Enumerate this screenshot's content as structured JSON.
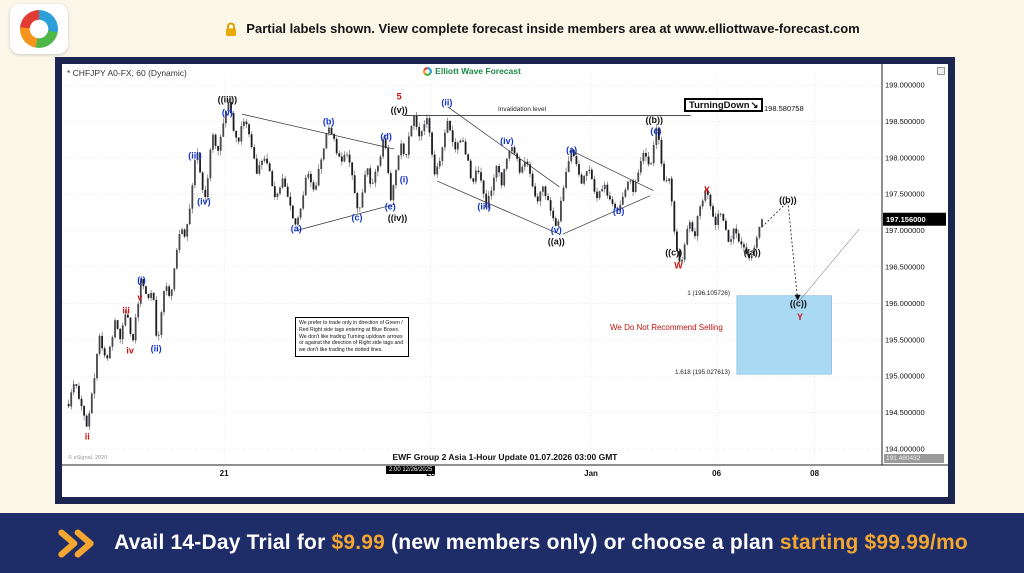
{
  "top_banner": {
    "text": "Partial labels shown. View complete forecast inside members area at www.elliottwave-forecast.com"
  },
  "bottom_banner": {
    "pre": "Avail 14-Day Trial for ",
    "price": "$9.99",
    "mid": " (new members only) or choose a plan ",
    "highlight": "starting $99.99/mo"
  },
  "chart_header": {
    "symbol": "* CHFJPY A0-FX, 60 (Dynamic)",
    "brand": "Elliott Wave Forecast"
  },
  "annotations": {
    "turning_down": "TurningDown",
    "turning_down_arrow": "↘",
    "invalidation_price": "198.580758",
    "invalidation_label": "Invalidation level",
    "no_sell": "We Do Not Recommend Selling",
    "disclaimer": "We prefer to trade only in direction of Green / Red Right side tags entering at Blue Boxes. We don't like trading Turning up/down arrows or against the direction of Right side tags and we don't like trading the dotted lines.",
    "fib_1": "1 (196.105726)",
    "fib_1618": "1.618 (195.027613)"
  },
  "footer": {
    "update": "EWF Group 2 Asia 1-Hour Update 01.07.2026 03:00 GMT",
    "copyright": "© eSignal, 2020",
    "time_badge": "2:00 12/26/2025",
    "axis_extra": "191.480432"
  },
  "colors": {
    "navy": "#1e2c68",
    "cream": "#faf6e8",
    "gold": "#f4a62e",
    "blue_box": "#a9d9f3",
    "label_blue": "#1133cc",
    "label_red": "#cc1111",
    "brand_green": "#1d8a44"
  },
  "chart_data": {
    "type": "candlestick",
    "symbol": "CHFJPY A0-FX",
    "timeframe_minutes": 60,
    "price_axis_range": [
      194.0,
      199.0
    ],
    "grid": true,
    "current_price": 197.156,
    "current_price_label": "197.156000",
    "invalidation_level": 198.580758,
    "invalidation_span": [
      0.415,
      0.77
    ],
    "price_ticks": [
      {
        "label": "199.000000",
        "value": 199.0
      },
      {
        "label": "198.500000",
        "value": 198.5
      },
      {
        "label": "198.000000",
        "value": 198.0
      },
      {
        "label": "197.500000",
        "value": 197.5
      },
      {
        "label": "197.000000",
        "value": 197.0
      },
      {
        "label": "196.500000",
        "value": 196.5
      },
      {
        "label": "196.000000",
        "value": 196.0
      },
      {
        "label": "195.500000",
        "value": 195.5
      },
      {
        "label": "195.000000",
        "value": 195.0
      },
      {
        "label": "194.500000",
        "value": 194.5
      },
      {
        "label": "194.000000",
        "value": 194.0
      }
    ],
    "time_ticks": [
      {
        "label": "21",
        "f": 0.194
      },
      {
        "label": "28",
        "f": 0.449
      },
      {
        "label": "Jan",
        "f": 0.647
      },
      {
        "label": "06",
        "f": 0.802
      },
      {
        "label": "08",
        "f": 0.923
      }
    ],
    "blue_box": {
      "f1": 0.827,
      "f2": 0.944,
      "p_top": 196.105726,
      "p_bottom": 195.027613,
      "color": "#a9d9f3"
    },
    "swings": [
      [
        0.002,
        194.62
      ],
      [
        0.01,
        194.95
      ],
      [
        0.018,
        194.55
      ],
      [
        0.025,
        194.28
      ],
      [
        0.04,
        195.55
      ],
      [
        0.048,
        195.18
      ],
      [
        0.06,
        195.75
      ],
      [
        0.066,
        195.45
      ],
      [
        0.073,
        195.97
      ],
      [
        0.08,
        195.4
      ],
      [
        0.092,
        196.36
      ],
      [
        0.1,
        196.05
      ],
      [
        0.106,
        196.22
      ],
      [
        0.111,
        195.42
      ],
      [
        0.122,
        196.3
      ],
      [
        0.128,
        196.05
      ],
      [
        0.14,
        197.1
      ],
      [
        0.146,
        196.85
      ],
      [
        0.16,
        198.1
      ],
      [
        0.17,
        197.4
      ],
      [
        0.18,
        198.35
      ],
      [
        0.186,
        198.05
      ],
      [
        0.198,
        198.78
      ],
      [
        0.21,
        198.2
      ],
      [
        0.22,
        198.55
      ],
      [
        0.235,
        197.8
      ],
      [
        0.243,
        198.05
      ],
      [
        0.258,
        197.45
      ],
      [
        0.266,
        197.7
      ],
      [
        0.283,
        197.05
      ],
      [
        0.297,
        197.8
      ],
      [
        0.305,
        197.5
      ],
      [
        0.323,
        198.48
      ],
      [
        0.338,
        197.9
      ],
      [
        0.346,
        198.1
      ],
      [
        0.36,
        197.2
      ],
      [
        0.37,
        197.85
      ],
      [
        0.377,
        197.6
      ],
      [
        0.392,
        198.28
      ],
      [
        0.4,
        197.38
      ],
      [
        0.412,
        198.25
      ],
      [
        0.418,
        198.0
      ],
      [
        0.428,
        198.62
      ],
      [
        0.436,
        198.3
      ],
      [
        0.445,
        198.58
      ],
      [
        0.455,
        197.72
      ],
      [
        0.462,
        198.1
      ],
      [
        0.47,
        198.52
      ],
      [
        0.48,
        198.1
      ],
      [
        0.488,
        198.3
      ],
      [
        0.5,
        197.65
      ],
      [
        0.507,
        197.9
      ],
      [
        0.518,
        197.33
      ],
      [
        0.53,
        197.85
      ],
      [
        0.537,
        197.65
      ],
      [
        0.548,
        198.23
      ],
      [
        0.56,
        197.8
      ],
      [
        0.568,
        197.95
      ],
      [
        0.58,
        197.4
      ],
      [
        0.588,
        197.6
      ],
      [
        0.604,
        197.02
      ],
      [
        0.615,
        197.7
      ],
      [
        0.623,
        198.1
      ],
      [
        0.635,
        197.65
      ],
      [
        0.643,
        197.85
      ],
      [
        0.655,
        197.45
      ],
      [
        0.663,
        197.6
      ],
      [
        0.681,
        197.28
      ],
      [
        0.693,
        197.7
      ],
      [
        0.7,
        197.55
      ],
      [
        0.712,
        198.05
      ],
      [
        0.72,
        197.85
      ],
      [
        0.728,
        198.45
      ],
      [
        0.738,
        197.6
      ],
      [
        0.743,
        197.8
      ],
      [
        0.752,
        196.72
      ],
      [
        0.758,
        196.55
      ],
      [
        0.768,
        197.1
      ],
      [
        0.774,
        196.9
      ],
      [
        0.783,
        197.4
      ],
      [
        0.79,
        197.58
      ],
      [
        0.8,
        197.1
      ],
      [
        0.806,
        197.3
      ],
      [
        0.818,
        196.85
      ],
      [
        0.824,
        197.0
      ],
      [
        0.838,
        196.7
      ],
      [
        0.846,
        196.62
      ],
      [
        0.852,
        196.95
      ],
      [
        0.858,
        197.16
      ]
    ],
    "projection": [
      [
        0.858,
        197.05
      ],
      [
        0.89,
        197.4
      ],
      [
        0.902,
        196.05
      ]
    ],
    "alt_path_line": [
      [
        0.903,
        196.02
      ],
      [
        0.978,
        197.02
      ]
    ],
    "trend_lines": [
      {
        "f1": 0.216,
        "p1": 198.6,
        "f2": 0.404,
        "p2": 198.12
      },
      {
        "f1": 0.283,
        "p1": 197.0,
        "f2": 0.404,
        "p2": 197.36
      },
      {
        "f1": 0.47,
        "p1": 198.7,
        "f2": 0.608,
        "p2": 197.6
      },
      {
        "f1": 0.457,
        "p1": 197.68,
        "f2": 0.608,
        "p2": 196.95
      },
      {
        "f1": 0.626,
        "p1": 198.08,
        "f2": 0.724,
        "p2": 197.55
      },
      {
        "f1": 0.612,
        "p1": 196.95,
        "f2": 0.72,
        "p2": 197.48
      }
    ],
    "wave_labels": [
      {
        "t": "ii",
        "c": "r",
        "f": 0.025,
        "p": 194.17
      },
      {
        "t": "iii",
        "c": "r",
        "f": 0.073,
        "p": 195.9
      },
      {
        "t": "iv",
        "c": "r",
        "f": 0.078,
        "p": 195.35
      },
      {
        "t": "v",
        "c": "r",
        "f": 0.09,
        "p": 196.08
      },
      {
        "t": "(i)",
        "c": "b",
        "f": 0.092,
        "p": 196.32
      },
      {
        "t": "(ii)",
        "c": "b",
        "f": 0.11,
        "p": 195.38
      },
      {
        "t": "(iii)",
        "c": "b",
        "f": 0.158,
        "p": 198.03
      },
      {
        "t": "(iv)",
        "c": "b",
        "f": 0.169,
        "p": 197.4
      },
      {
        "t": "((iii))",
        "c": "k",
        "f": 0.198,
        "p": 198.8
      },
      {
        "t": "(v)",
        "c": "b",
        "f": 0.198,
        "p": 198.62
      },
      {
        "t": "(a)",
        "c": "b",
        "f": 0.283,
        "p": 197.03
      },
      {
        "t": "(b)",
        "c": "b",
        "f": 0.323,
        "p": 198.5
      },
      {
        "t": "(c)",
        "c": "b",
        "f": 0.358,
        "p": 197.18
      },
      {
        "t": "(d)",
        "c": "b",
        "f": 0.394,
        "p": 198.29
      },
      {
        "t": "(e)",
        "c": "b",
        "f": 0.399,
        "p": 197.33
      },
      {
        "t": "((iv))",
        "c": "k",
        "f": 0.408,
        "p": 197.17
      },
      {
        "t": "5",
        "c": "r",
        "f": 0.41,
        "p": 198.84
      },
      {
        "t": "((v))",
        "c": "k",
        "f": 0.41,
        "p": 198.66
      },
      {
        "t": "(i)",
        "c": "b",
        "f": 0.416,
        "p": 197.7
      },
      {
        "t": "(ii)",
        "c": "b",
        "f": 0.469,
        "p": 198.76
      },
      {
        "t": "(iii)",
        "c": "b",
        "f": 0.515,
        "p": 197.33
      },
      {
        "t": "(iv)",
        "c": "b",
        "f": 0.543,
        "p": 198.23
      },
      {
        "t": "(v)",
        "c": "b",
        "f": 0.604,
        "p": 197.01
      },
      {
        "t": "((a))",
        "c": "k",
        "f": 0.604,
        "p": 196.85
      },
      {
        "t": "(a)",
        "c": "b",
        "f": 0.623,
        "p": 198.11
      },
      {
        "t": "(b)",
        "c": "b",
        "f": 0.681,
        "p": 197.27
      },
      {
        "t": "((b))",
        "c": "k",
        "f": 0.725,
        "p": 198.52
      },
      {
        "t": "(c)",
        "c": "b",
        "f": 0.727,
        "p": 198.37
      },
      {
        "t": "((c))",
        "c": "k",
        "f": 0.749,
        "p": 196.7
      },
      {
        "t": "W",
        "c": "r",
        "f": 0.755,
        "p": 196.52
      },
      {
        "t": "X",
        "c": "r",
        "f": 0.79,
        "p": 197.56
      },
      {
        "t": "((a))",
        "c": "k",
        "f": 0.846,
        "p": 196.7
      },
      {
        "t": "((b))",
        "c": "k",
        "f": 0.89,
        "p": 197.42
      },
      {
        "t": "((c))",
        "c": "k",
        "f": 0.903,
        "p": 196.0
      },
      {
        "t": "Y",
        "c": "r",
        "f": 0.905,
        "p": 195.81
      }
    ]
  }
}
